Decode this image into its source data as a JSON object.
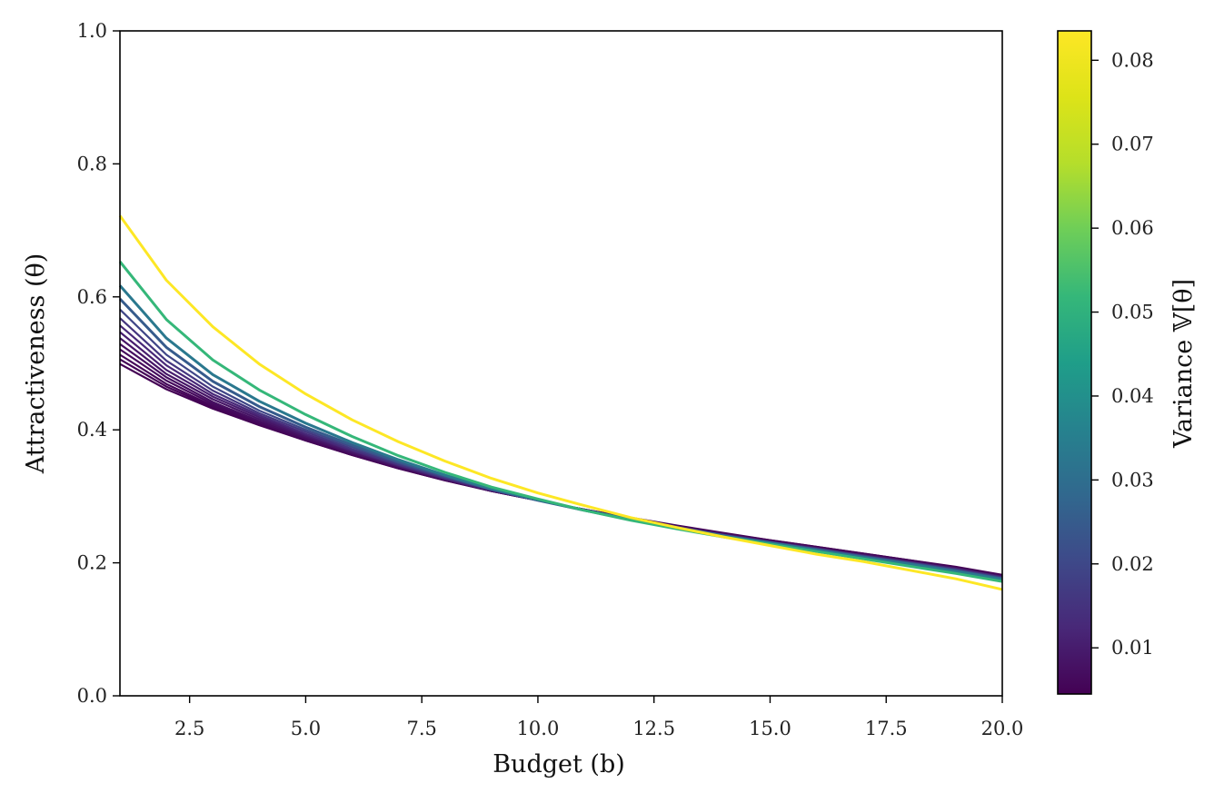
{
  "chart_data": {
    "type": "line",
    "title": "",
    "xlabel": "Budget (b)",
    "ylabel": "Attractiveness (θ)",
    "xlim": [
      1,
      20
    ],
    "ylim": [
      0,
      1
    ],
    "xticks": [
      "2.5",
      "5.0",
      "7.5",
      "10.0",
      "12.5",
      "15.0",
      "17.5",
      "20.0"
    ],
    "yticks": [
      "0.0",
      "0.2",
      "0.4",
      "0.6",
      "0.8",
      "1.0"
    ],
    "grid": false,
    "legend": "none",
    "colormap": "viridis",
    "colorbar": {
      "label": "Variance 𝕍[θ]",
      "range": [
        0.0045,
        0.0835
      ],
      "ticks": [
        "0.01",
        "0.02",
        "0.03",
        "0.04",
        "0.05",
        "0.06",
        "0.07",
        "0.08"
      ]
    },
    "x": [
      1,
      2,
      3,
      4,
      5,
      6,
      7,
      8,
      9,
      10,
      11,
      12,
      13,
      14,
      15,
      16,
      17,
      18,
      19,
      20
    ],
    "series": [
      {
        "variance": 0.0835,
        "values": [
          0.722,
          0.625,
          0.555,
          0.499,
          0.454,
          0.415,
          0.382,
          0.353,
          0.327,
          0.305,
          0.286,
          0.268,
          0.253,
          0.239,
          0.226,
          0.213,
          0.202,
          0.189,
          0.176,
          0.16
        ]
      },
      {
        "variance": 0.0519,
        "values": [
          0.653,
          0.566,
          0.505,
          0.46,
          0.423,
          0.39,
          0.361,
          0.336,
          0.314,
          0.296,
          0.279,
          0.264,
          0.251,
          0.239,
          0.228,
          0.217,
          0.206,
          0.195,
          0.184,
          0.172
        ]
      },
      {
        "variance": 0.033,
        "values": [
          0.617,
          0.538,
          0.483,
          0.443,
          0.41,
          0.381,
          0.355,
          0.332,
          0.311,
          0.295,
          0.279,
          0.265,
          0.252,
          0.24,
          0.23,
          0.219,
          0.208,
          0.198,
          0.187,
          0.175
        ]
      },
      {
        "variance": 0.025,
        "values": [
          0.597,
          0.524,
          0.473,
          0.435,
          0.404,
          0.377,
          0.352,
          0.331,
          0.311,
          0.294,
          0.279,
          0.265,
          0.253,
          0.241,
          0.23,
          0.22,
          0.209,
          0.199,
          0.188,
          0.176
        ]
      },
      {
        "variance": 0.0195,
        "values": [
          0.581,
          0.513,
          0.465,
          0.429,
          0.4,
          0.374,
          0.35,
          0.329,
          0.31,
          0.294,
          0.279,
          0.265,
          0.253,
          0.241,
          0.231,
          0.22,
          0.21,
          0.2,
          0.189,
          0.177
        ]
      },
      {
        "variance": 0.0155,
        "values": [
          0.568,
          0.504,
          0.459,
          0.425,
          0.397,
          0.371,
          0.348,
          0.328,
          0.31,
          0.294,
          0.279,
          0.266,
          0.253,
          0.242,
          0.231,
          0.221,
          0.21,
          0.2,
          0.19,
          0.178
        ]
      },
      {
        "variance": 0.0125,
        "values": [
          0.557,
          0.497,
          0.454,
          0.422,
          0.394,
          0.369,
          0.347,
          0.327,
          0.309,
          0.294,
          0.279,
          0.266,
          0.254,
          0.242,
          0.231,
          0.221,
          0.211,
          0.201,
          0.191,
          0.178
        ]
      },
      {
        "variance": 0.0102,
        "values": [
          0.547,
          0.49,
          0.45,
          0.419,
          0.392,
          0.368,
          0.346,
          0.326,
          0.309,
          0.294,
          0.279,
          0.266,
          0.254,
          0.242,
          0.232,
          0.222,
          0.211,
          0.201,
          0.191,
          0.179
        ]
      },
      {
        "variance": 0.0085,
        "values": [
          0.538,
          0.484,
          0.446,
          0.416,
          0.39,
          0.366,
          0.345,
          0.326,
          0.309,
          0.294,
          0.28,
          0.266,
          0.254,
          0.243,
          0.232,
          0.222,
          0.212,
          0.202,
          0.191,
          0.179
        ]
      },
      {
        "variance": 0.0072,
        "values": [
          0.529,
          0.479,
          0.442,
          0.413,
          0.388,
          0.365,
          0.344,
          0.325,
          0.308,
          0.294,
          0.28,
          0.267,
          0.255,
          0.243,
          0.232,
          0.222,
          0.212,
          0.202,
          0.192,
          0.18
        ]
      },
      {
        "variance": 0.0062,
        "values": [
          0.521,
          0.474,
          0.439,
          0.411,
          0.386,
          0.364,
          0.343,
          0.325,
          0.308,
          0.294,
          0.28,
          0.267,
          0.255,
          0.243,
          0.233,
          0.223,
          0.213,
          0.203,
          0.192,
          0.18
        ]
      },
      {
        "variance": 0.0055,
        "values": [
          0.513,
          0.469,
          0.436,
          0.409,
          0.385,
          0.363,
          0.343,
          0.325,
          0.308,
          0.294,
          0.28,
          0.267,
          0.255,
          0.244,
          0.233,
          0.223,
          0.213,
          0.203,
          0.193,
          0.181
        ]
      },
      {
        "variance": 0.005,
        "values": [
          0.506,
          0.465,
          0.434,
          0.408,
          0.384,
          0.362,
          0.342,
          0.324,
          0.308,
          0.294,
          0.28,
          0.267,
          0.255,
          0.244,
          0.234,
          0.224,
          0.214,
          0.204,
          0.193,
          0.181
        ]
      },
      {
        "variance": 0.0046,
        "values": [
          0.499,
          0.461,
          0.432,
          0.407,
          0.384,
          0.362,
          0.342,
          0.324,
          0.308,
          0.294,
          0.28,
          0.268,
          0.256,
          0.245,
          0.234,
          0.224,
          0.214,
          0.204,
          0.194,
          0.182
        ]
      }
    ]
  }
}
